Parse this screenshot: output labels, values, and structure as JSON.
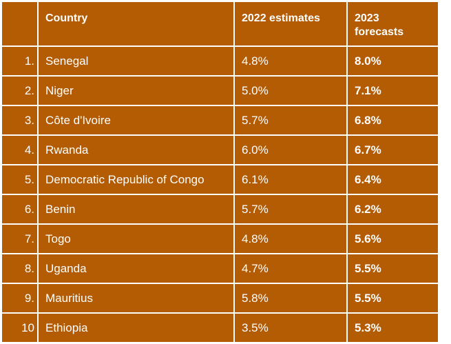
{
  "table": {
    "headers": [
      "",
      "Country",
      "2022 estimates",
      "2023 forecasts"
    ],
    "rows": [
      {
        "rank": "1.",
        "country": "Senegal",
        "est_2022": "4.8%",
        "fc_2023": "8.0%"
      },
      {
        "rank": "2.",
        "country": "Niger",
        "est_2022": "5.0%",
        "fc_2023": "7.1%"
      },
      {
        "rank": "3.",
        "country": "Côte d'Ivoire",
        "est_2022": "5.7%",
        "fc_2023": "6.8%"
      },
      {
        "rank": "4.",
        "country": "Rwanda",
        "est_2022": "6.0%",
        "fc_2023": "6.7%"
      },
      {
        "rank": "5.",
        "country": "Democratic Republic of Congo",
        "est_2022": "6.1%",
        "fc_2023": "6.4%"
      },
      {
        "rank": "6.",
        "country": "Benin",
        "est_2022": "5.7%",
        "fc_2023": "6.2%"
      },
      {
        "rank": "7.",
        "country": "Togo",
        "est_2022": "4.8%",
        "fc_2023": "5.6%"
      },
      {
        "rank": "8.",
        "country": "Uganda",
        "est_2022": "4.7%",
        "fc_2023": "5.5%"
      },
      {
        "rank": "9.",
        "country": "Mauritius",
        "est_2022": "5.8%",
        "fc_2023": "5.5%"
      },
      {
        "rank": "10",
        "country": "Ethiopia",
        "est_2022": "3.5%",
        "fc_2023": "5.3%"
      }
    ]
  },
  "colors": {
    "cell_bg": "#b35c04",
    "text": "#ffffff",
    "grid": "#ffffff"
  }
}
